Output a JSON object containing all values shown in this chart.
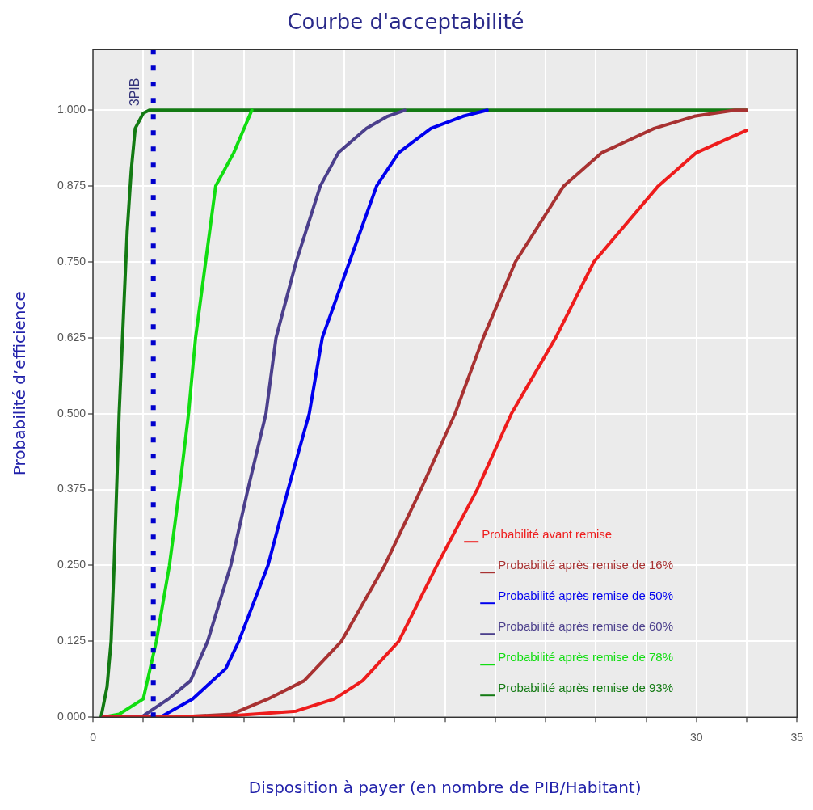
{
  "chart_data": {
    "type": "line",
    "title": "Courbe d'acceptabilité",
    "xlabel": "Disposition à payer (en nombre de PIB/Habitant)",
    "ylabel": "Probabilité d’efficience",
    "xlim": [
      0,
      35
    ],
    "ylim": [
      0,
      1.1
    ],
    "xticks": [
      0,
      {
        "value": 2.5,
        "label": null
      },
      {
        "value": 5,
        "label": null
      },
      {
        "value": 7.5,
        "label": null
      },
      {
        "value": 10,
        "label": null
      },
      {
        "value": 12.5,
        "label": null
      },
      {
        "value": 15,
        "label": null
      },
      {
        "value": 17.5,
        "label": null
      },
      {
        "value": 20,
        "label": null
      },
      {
        "value": 22.5,
        "label": null
      },
      {
        "value": 25,
        "label": null
      },
      {
        "value": 27.5,
        "label": null
      },
      30,
      {
        "value": 32.5,
        "label": null
      },
      35
    ],
    "yticks": [
      {
        "value": 0,
        "label": "0.000"
      },
      {
        "value": 0.125,
        "label": "0.125"
      },
      {
        "value": 0.25,
        "label": "0.250"
      },
      {
        "value": 0.375,
        "label": "0.375"
      },
      {
        "value": 0.5,
        "label": "0.500"
      },
      {
        "value": 0.625,
        "label": "0.625"
      },
      {
        "value": 0.75,
        "label": "0.750"
      },
      {
        "value": 0.875,
        "label": "0.875"
      },
      {
        "value": 1,
        "label": "1.000"
      }
    ],
    "grid": true,
    "legend": "bottom right",
    "marker": "none",
    "line_style": "solid",
    "ref_lines": [
      {
        "axis": "x",
        "value": 3,
        "label": "3PIB",
        "color": "#0000cc",
        "line_style": "dotted"
      }
    ],
    "series": [
      {
        "name": "Probabilité avant remise",
        "color": "#ee1c1c",
        "x": [
          0.5,
          4,
          6.7,
          10.1,
          12,
          13.4,
          15.2,
          17.1,
          19.1,
          20.8,
          23,
          24.9,
          28.1,
          30,
          32.5
        ],
        "values": [
          0,
          0,
          0.002,
          0.01,
          0.03,
          0.06,
          0.125,
          0.25,
          0.375,
          0.5,
          0.625,
          0.75,
          0.875,
          0.93,
          0.967
        ]
      },
      {
        "name": "Probabilité après remise de 16%",
        "color": "#a83232",
        "x": [
          0.5,
          4,
          6.9,
          8.7,
          10.5,
          12.35,
          14.5,
          16.3,
          18,
          19.4,
          21,
          23.4,
          25.3,
          27.9,
          29.9,
          31.9,
          32.5
        ],
        "values": [
          0,
          0,
          0.005,
          0.03,
          0.06,
          0.125,
          0.25,
          0.375,
          0.5,
          0.625,
          0.75,
          0.875,
          0.93,
          0.97,
          0.99,
          1,
          1
        ]
      },
      {
        "name": "Probabilité après remise de 50%",
        "color": "#0000ee",
        "x": [
          0.5,
          3.35,
          4.95,
          6.6,
          7.25,
          8.7,
          9.7,
          10.75,
          11.4,
          12.75,
          14.1,
          15.2,
          16.8,
          18.4,
          19.6
        ],
        "values": [
          0,
          0,
          0.03,
          0.08,
          0.125,
          0.25,
          0.375,
          0.5,
          0.625,
          0.75,
          0.875,
          0.93,
          0.97,
          0.99,
          1
        ]
      },
      {
        "name": "Probabilité après remise de 60%",
        "color": "#4b3f8c",
        "x": [
          0.5,
          2.4,
          3.75,
          4.85,
          5.7,
          6.85,
          7.7,
          8.6,
          9.1,
          10.1,
          11.3,
          12.2,
          13.6,
          14.65,
          15.5
        ],
        "values": [
          0,
          0,
          0.03,
          0.06,
          0.125,
          0.25,
          0.375,
          0.5,
          0.625,
          0.75,
          0.875,
          0.93,
          0.97,
          0.99,
          1
        ]
      },
      {
        "name": "Probabilité après remise de 78%",
        "color": "#11dd11",
        "x": [
          0.5,
          1.3,
          2.5,
          3.15,
          3.8,
          4.3,
          4.75,
          5.1,
          5.6,
          6.1,
          7,
          7.9
        ],
        "values": [
          0,
          0.005,
          0.03,
          0.125,
          0.25,
          0.375,
          0.5,
          0.625,
          0.75,
          0.875,
          0.93,
          1
        ]
      },
      {
        "name": "Probabilité après remise de 93%",
        "color": "#137a13",
        "x": [
          0.4,
          0.7,
          0.9,
          1.05,
          1.2,
          1.3,
          1.5,
          1.7,
          1.9,
          2.1,
          2.5,
          2.8,
          32.5
        ],
        "values": [
          0,
          0.05,
          0.125,
          0.25,
          0.4,
          0.5,
          0.65,
          0.8,
          0.9,
          0.97,
          0.995,
          1,
          1
        ]
      }
    ]
  }
}
